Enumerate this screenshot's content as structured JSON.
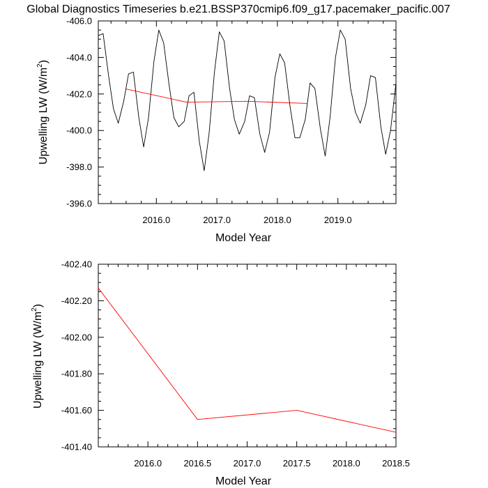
{
  "title": "Global Diagnostics Timeseries b.e21.BSSP370cmip6.f09_g17.pacemaker_pacific.007",
  "colors": {
    "monthly": "#000000",
    "annual": "#ff0000",
    "axis": "#000000",
    "background": "#ffffff"
  },
  "chart_data": [
    {
      "type": "line",
      "xlabel": "Model Year",
      "ylabel_text": "Upwelling LW (W/m",
      "ylabel_sup": "2",
      "ylabel_close": ")",
      "xlim": [
        2015.04,
        2019.96
      ],
      "ylim": [
        -406,
        -396
      ],
      "y_reversed": true,
      "xticks": [
        2016,
        2017,
        2018,
        2019
      ],
      "xtick_labels": [
        "2016.0",
        "2017.0",
        "2018.0",
        "2019.0"
      ],
      "yticks": [
        -396,
        -398,
        -400,
        -402,
        -404,
        -406
      ],
      "ytick_labels": [
        "-396.0",
        "-398.0",
        "-400.0",
        "-402.0",
        "-404.0",
        "-406.0"
      ],
      "grid": false,
      "series": [
        {
          "color": "#000000",
          "x": [
            2015.04,
            2015.12,
            2015.21,
            2015.29,
            2015.37,
            2015.46,
            2015.54,
            2015.62,
            2015.71,
            2015.79,
            2015.87,
            2015.96,
            2016.04,
            2016.12,
            2016.21,
            2016.29,
            2016.37,
            2016.46,
            2016.54,
            2016.62,
            2016.71,
            2016.79,
            2016.87,
            2016.96,
            2017.04,
            2017.12,
            2017.21,
            2017.29,
            2017.37,
            2017.46,
            2017.54,
            2017.62,
            2017.71,
            2017.79,
            2017.87,
            2017.96,
            2018.04,
            2018.12,
            2018.21,
            2018.29,
            2018.37,
            2018.46,
            2018.54,
            2018.62,
            2018.71,
            2018.79,
            2018.87,
            2018.96,
            2019.04,
            2019.12,
            2019.21,
            2019.29,
            2019.37,
            2019.46,
            2019.54,
            2019.62,
            2019.71,
            2019.79,
            2019.87,
            2019.96
          ],
          "y": [
            -405.2,
            -405.3,
            -403.0,
            -401.2,
            -400.4,
            -401.6,
            -403.1,
            -403.2,
            -400.7,
            -399.1,
            -400.7,
            -403.8,
            -405.5,
            -404.8,
            -402.5,
            -400.7,
            -400.2,
            -400.5,
            -401.9,
            -402.1,
            -399.4,
            -397.8,
            -399.8,
            -403.2,
            -405.4,
            -404.9,
            -402.3,
            -400.6,
            -399.8,
            -400.5,
            -401.9,
            -401.8,
            -399.8,
            -398.8,
            -399.9,
            -402.9,
            -404.2,
            -403.7,
            -401.3,
            -399.6,
            -399.6,
            -400.6,
            -402.6,
            -402.3,
            -400.1,
            -398.6,
            -400.7,
            -404.0,
            -405.5,
            -405.0,
            -402.3,
            -401.0,
            -400.4,
            -401.4,
            -403.0,
            -402.9,
            -400.2,
            -398.7,
            -400.0,
            -402.6
          ]
        },
        {
          "color": "#ff0000",
          "x": [
            2015.5,
            2016.5,
            2017.5,
            2018.5
          ],
          "y": [
            -402.27,
            -401.55,
            -401.6,
            -401.48
          ]
        }
      ]
    },
    {
      "type": "line",
      "xlabel": "Model Year",
      "ylabel_text": "Upwelling LW (W/m",
      "ylabel_sup": "2",
      "ylabel_close": ")",
      "xlim": [
        2015.5,
        2018.5
      ],
      "ylim": [
        -402.4,
        -401.4
      ],
      "y_reversed": true,
      "xticks": [
        2016,
        2016.5,
        2017,
        2017.5,
        2018,
        2018.5
      ],
      "xtick_labels": [
        "2016.0",
        "2016.5",
        "2017.0",
        "2017.5",
        "2018.0",
        "2018.5"
      ],
      "yticks": [
        -401.4,
        -401.6,
        -401.8,
        -402.0,
        -402.2,
        -402.4
      ],
      "ytick_labels": [
        "-401.40",
        "-401.60",
        "-401.80",
        "-402.00",
        "-402.20",
        "-402.40"
      ],
      "grid": false,
      "series": [
        {
          "color": "#ff0000",
          "x": [
            2015.5,
            2016.5,
            2017.5,
            2018.5
          ],
          "y": [
            -402.27,
            -401.55,
            -401.6,
            -401.48
          ]
        }
      ]
    }
  ]
}
